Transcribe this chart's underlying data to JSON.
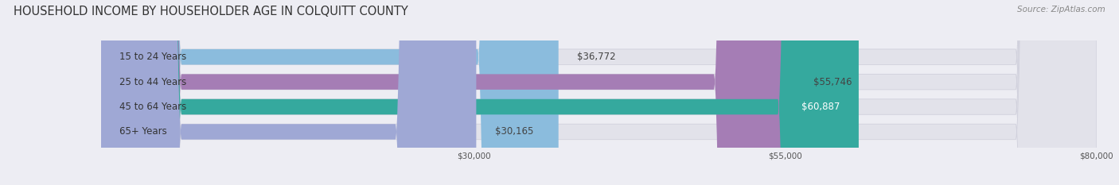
{
  "title": "HOUSEHOLD INCOME BY HOUSEHOLDER AGE IN COLQUITT COUNTY",
  "source": "Source: ZipAtlas.com",
  "categories": [
    "15 to 24 Years",
    "25 to 44 Years",
    "45 to 64 Years",
    "65+ Years"
  ],
  "values": [
    36772,
    55746,
    60887,
    30165
  ],
  "bar_colors": [
    "#8bbcdd",
    "#a57db5",
    "#35a99e",
    "#9fa8d5"
  ],
  "bar_labels": [
    "$36,772",
    "$55,746",
    "$60,887",
    "$30,165"
  ],
  "label_inside": [
    false,
    false,
    true,
    false
  ],
  "xlim": [
    0,
    80000
  ],
  "xticks": [
    30000,
    55000,
    80000
  ],
  "xticklabels": [
    "$30,000",
    "$55,000",
    "$80,000"
  ],
  "background_color": "#ededf3",
  "bar_bg_color": "#e2e2ea",
  "bar_bg_edge_color": "#d0d0dc",
  "title_fontsize": 10.5,
  "source_fontsize": 7.5,
  "bar_height": 0.62,
  "bar_label_fontsize": 8.5,
  "category_fontsize": 8.5,
  "cat_label_color": "#333333",
  "val_label_color_outside": "#444444",
  "val_label_color_inside": "#ffffff"
}
